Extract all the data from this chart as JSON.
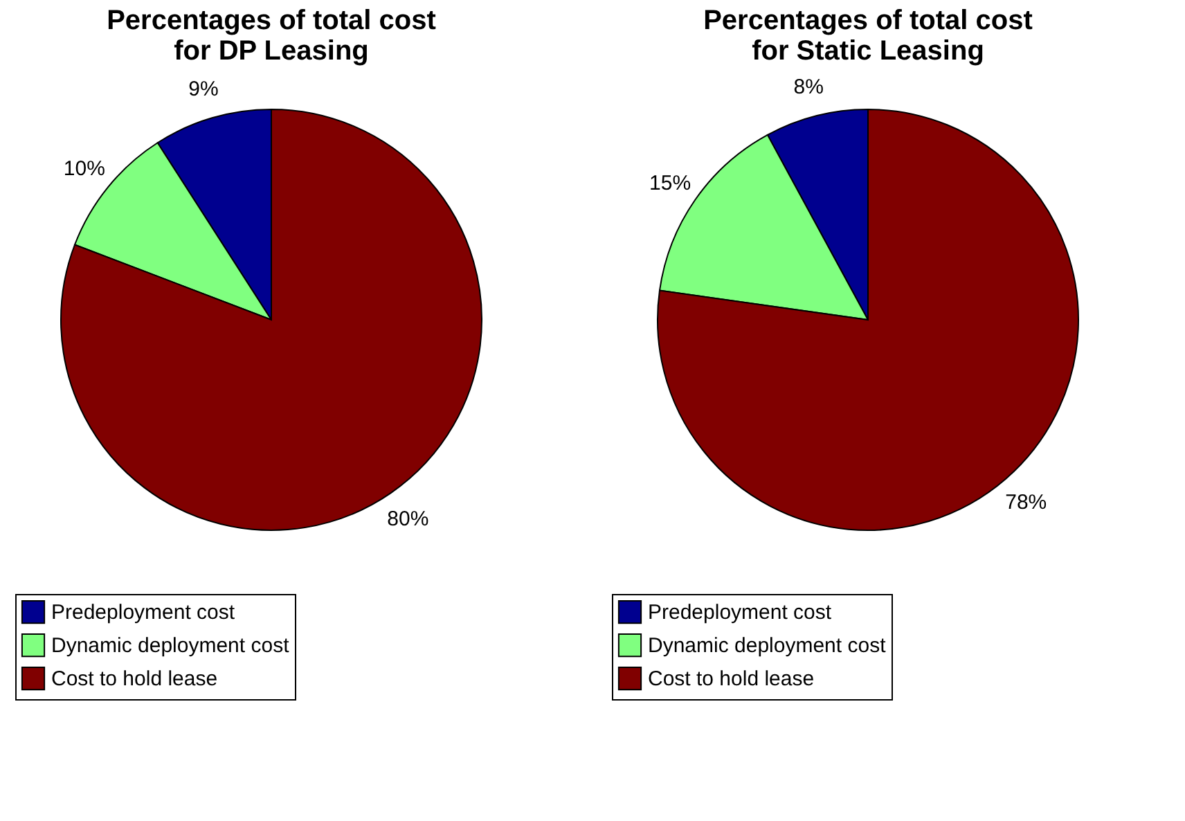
{
  "chart_data": [
    {
      "type": "pie",
      "title": "Percentages of total cost\nfor DP Leasing",
      "categories": [
        "Predeployment cost",
        "Dynamic deployment cost",
        "Cost to hold lease"
      ],
      "values": [
        9,
        10,
        80
      ],
      "value_labels": [
        "9%",
        "10%",
        "80%"
      ],
      "colors": [
        "#00008f",
        "#80ff80",
        "#800000"
      ],
      "legend": "bottom left"
    },
    {
      "type": "pie",
      "title": "Percentages of total cost\nfor Static Leasing",
      "categories": [
        "Predeployment cost",
        "Dynamic deployment cost",
        "Cost to hold lease"
      ],
      "values": [
        8,
        15,
        78
      ],
      "value_labels": [
        "8%",
        "15%",
        "78%"
      ],
      "colors": [
        "#00008f",
        "#80ff80",
        "#800000"
      ],
      "legend": "bottom left"
    }
  ]
}
